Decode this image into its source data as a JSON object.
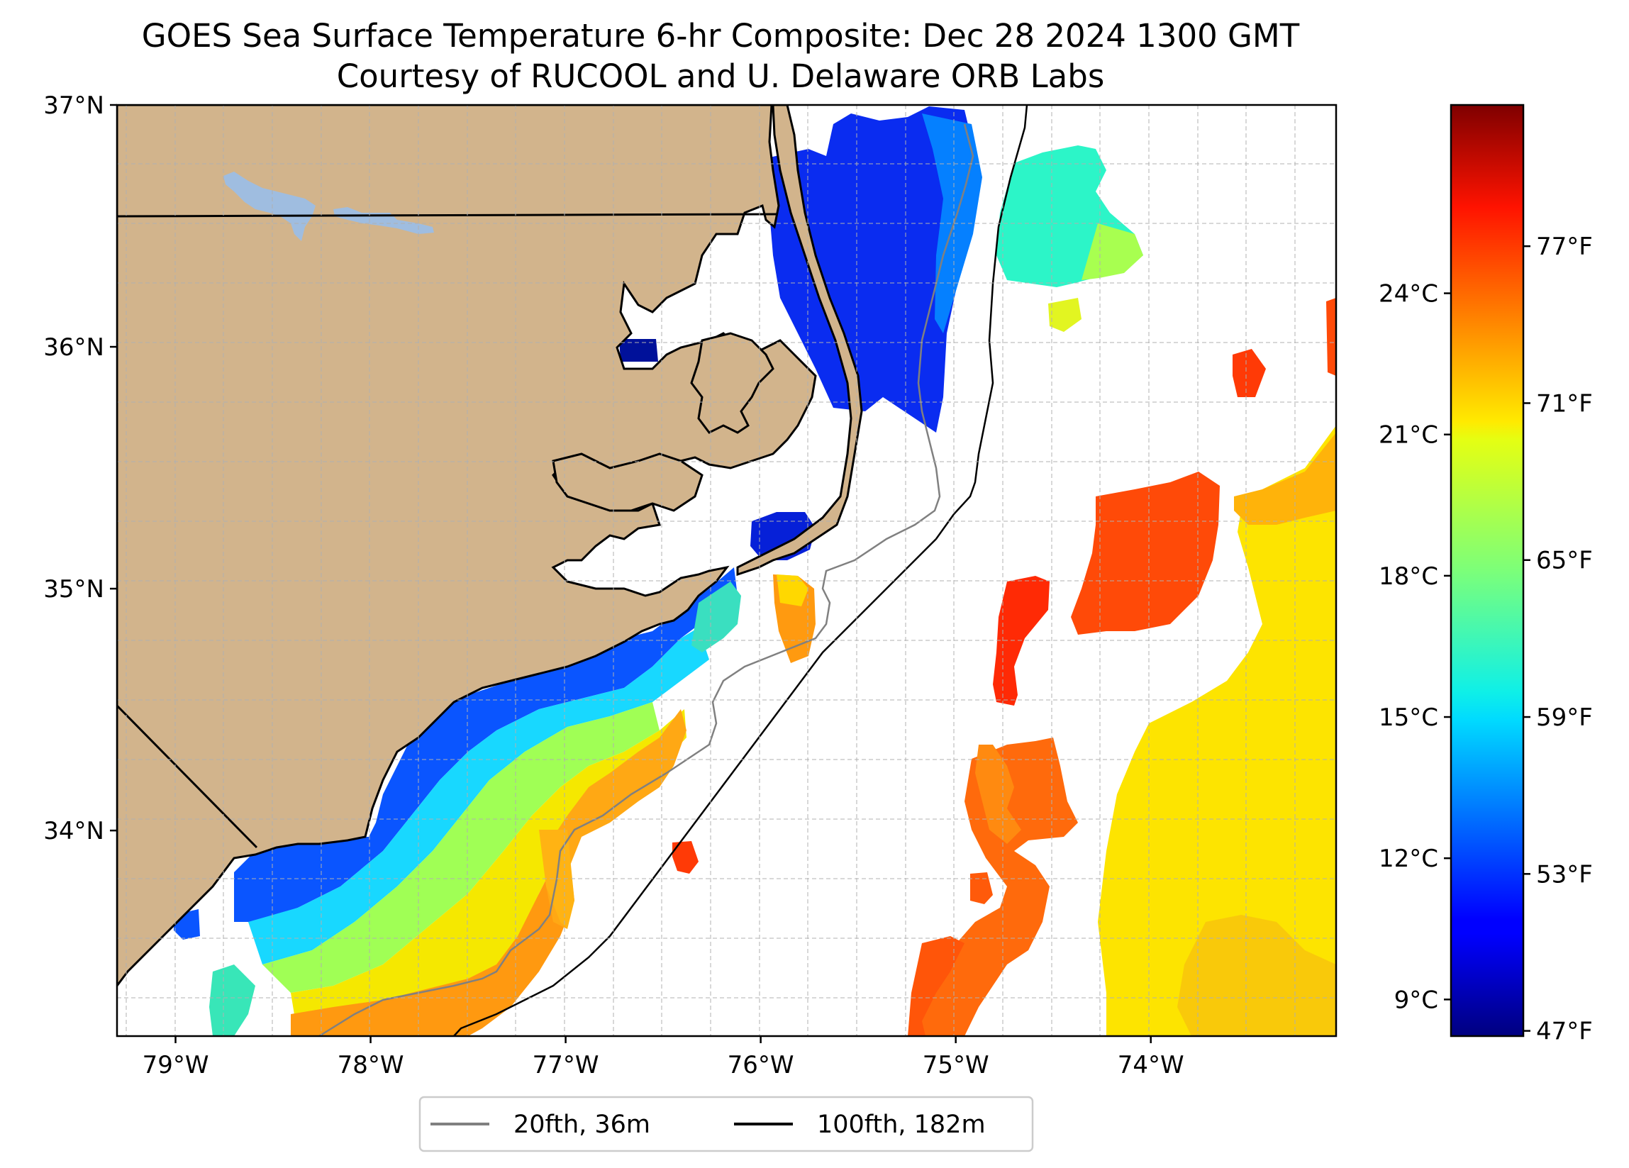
{
  "title": {
    "line1": "GOES Sea Surface Temperature 6-hr Composite: Dec 28 2024 1300 GMT",
    "line2": "Courtesy of RUCOOL and U. Delaware ORB Labs"
  },
  "map": {
    "lon_range": [
      -79.3,
      -73.05
    ],
    "lat_range": [
      33.15,
      37.0
    ],
    "lat_ticks": [
      {
        "value": 37,
        "label": "37°N"
      },
      {
        "value": 36,
        "label": "36°N"
      },
      {
        "value": 35,
        "label": "35°N"
      },
      {
        "value": 34,
        "label": "34°N"
      }
    ],
    "lon_ticks": [
      {
        "value": -79,
        "label": "79°W"
      },
      {
        "value": -78,
        "label": "78°W"
      },
      {
        "value": -77,
        "label": "77°W"
      },
      {
        "value": -76,
        "label": "76°W"
      },
      {
        "value": -75,
        "label": "75°W"
      },
      {
        "value": -74,
        "label": "74°W"
      }
    ],
    "colors": {
      "land": "#d2b48c",
      "lake": "#9fbde0",
      "coast": "#000000",
      "isobath_20fth": "#808080",
      "isobath_100fth": "#000000",
      "grid": "#b0b0b0"
    }
  },
  "legend": {
    "items": [
      {
        "label": "20fth, 36m",
        "color": "#808080"
      },
      {
        "label": "100fth, 182m",
        "color": "#000000"
      }
    ]
  },
  "colorbar": {
    "colormap": "jet",
    "celsius_ticks": [
      {
        "value": 24,
        "label": "24°C"
      },
      {
        "value": 21,
        "label": "21°C"
      },
      {
        "value": 18,
        "label": "18°C"
      },
      {
        "value": 15,
        "label": "15°C"
      },
      {
        "value": 12,
        "label": "12°C"
      },
      {
        "value": 9,
        "label": "9°C"
      }
    ],
    "fahrenheit_ticks": [
      {
        "value": 77,
        "label": "77°F"
      },
      {
        "value": 71,
        "label": "71°F"
      },
      {
        "value": 65,
        "label": "65°F"
      },
      {
        "value": 59,
        "label": "59°F"
      },
      {
        "value": 53,
        "label": "53°F"
      },
      {
        "value": 47,
        "label": "47°F"
      }
    ],
    "range_f": [
      46.8,
      82.4
    ]
  }
}
